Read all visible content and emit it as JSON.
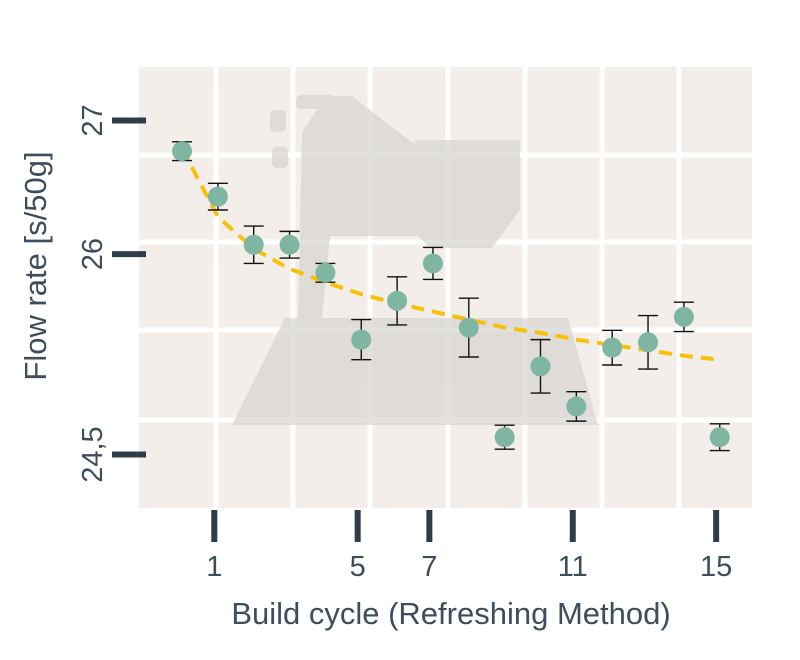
{
  "chart_data": {
    "type": "scatter",
    "title": "",
    "xlabel": "Build cycle (Refreshing Method)",
    "ylabel": "Flow rate [s/50g]",
    "x_ticks": [
      {
        "value": 1,
        "label": "1"
      },
      {
        "value": 5,
        "label": "5"
      },
      {
        "value": 7,
        "label": "7"
      },
      {
        "value": 11,
        "label": "11"
      },
      {
        "value": 15,
        "label": "15"
      }
    ],
    "y_ticks": [
      {
        "value": 24.5,
        "label": "24,5"
      },
      {
        "value": 26,
        "label": "26"
      },
      {
        "value": 27,
        "label": "27"
      }
    ],
    "xlim": [
      -1.1,
      16
    ],
    "ylim": [
      24.1,
      27.4
    ],
    "grid": true,
    "series": [
      {
        "type": "scatter",
        "x": [
          0.1,
          1.1,
          2.1,
          3.1,
          4.1,
          5.1,
          6.1,
          7.1,
          8.1,
          9.1,
          10.1,
          11.1,
          12.1,
          13.1,
          14.1,
          15.1
        ],
        "y": [
          26.77,
          26.43,
          26.07,
          26.07,
          25.86,
          25.36,
          25.65,
          25.93,
          25.45,
          24.63,
          25.16,
          24.86,
          25.3,
          25.34,
          25.53,
          24.63
        ],
        "error": [
          0.07,
          0.1,
          0.14,
          0.1,
          0.07,
          0.15,
          0.18,
          0.12,
          0.22,
          0.09,
          0.2,
          0.11,
          0.13,
          0.2,
          0.11,
          0.1
        ],
        "color": "#7fb5a3"
      },
      {
        "type": "trend-line",
        "x": [
          0.1,
          1.1,
          2.1,
          3.1,
          4.1,
          5.1,
          6.1,
          7.1,
          8.1,
          9.1,
          10.1,
          11.1,
          12.1,
          13.1,
          14.1,
          15.1
        ],
        "y": [
          26.79,
          26.28,
          26.04,
          25.89,
          25.79,
          25.7,
          25.63,
          25.57,
          25.51,
          25.45,
          25.41,
          25.36,
          25.32,
          25.28,
          25.24,
          25.21
        ],
        "style": "dashed",
        "color": "#f7c00a"
      }
    ],
    "colors": {
      "plot_background": "#f3eee9",
      "grid": "#ffffff",
      "marker": "#7fb5a3",
      "error_bar": "#111111",
      "trend": "#f7c00a",
      "axis_text": "#3e4d5c",
      "tick_mark": "#2f3d4a",
      "watermark": "#d9d6d3"
    },
    "watermark": "stand-mixer-silhouette"
  }
}
